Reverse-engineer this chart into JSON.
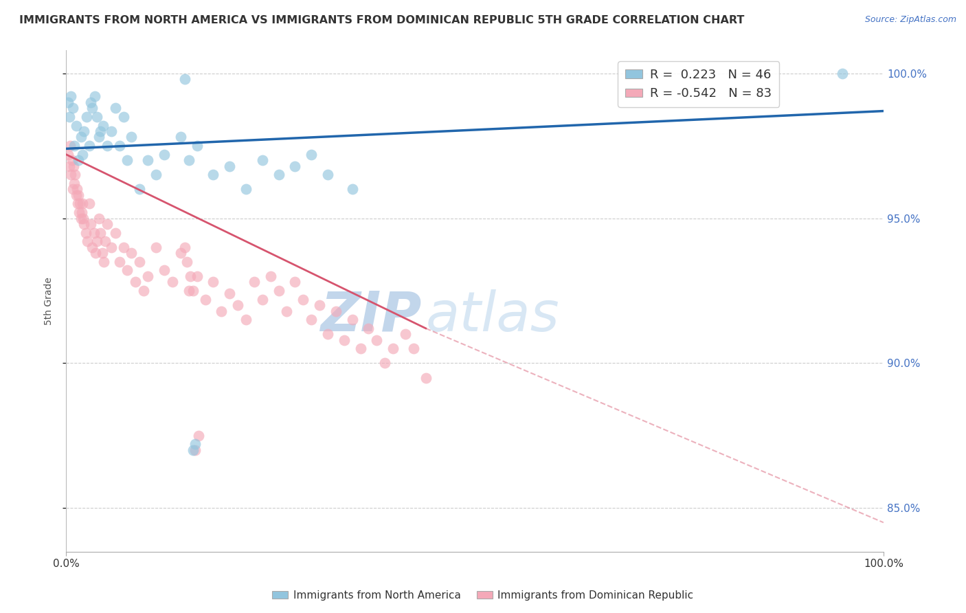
{
  "title": "IMMIGRANTS FROM NORTH AMERICA VS IMMIGRANTS FROM DOMINICAN REPUBLIC 5TH GRADE CORRELATION CHART",
  "source": "Source: ZipAtlas.com",
  "ylabel": "5th Grade",
  "xlim": [
    0.0,
    1.0
  ],
  "ylim": [
    0.835,
    1.008
  ],
  "yticks": [
    0.85,
    0.9,
    0.95,
    1.0
  ],
  "ytick_labels": [
    "85.0%",
    "90.0%",
    "95.0%",
    "100.0%"
  ],
  "blue_color": "#92c5de",
  "pink_color": "#f4a9b8",
  "blue_line_color": "#2166ac",
  "pink_line_color": "#d6546e",
  "watermark_zip": "ZIP",
  "watermark_atlas": "atlas",
  "legend_r_blue": "R =  0.223",
  "legend_n_blue": "N = 46",
  "legend_r_pink": "R = -0.542",
  "legend_n_pink": "N = 83",
  "blue_scatter_x": [
    0.002,
    0.004,
    0.006,
    0.008,
    0.01,
    0.012,
    0.015,
    0.018,
    0.02,
    0.022,
    0.025,
    0.028,
    0.03,
    0.032,
    0.035,
    0.038,
    0.04,
    0.042,
    0.045,
    0.05,
    0.055,
    0.06,
    0.065,
    0.07,
    0.075,
    0.08,
    0.09,
    0.1,
    0.11,
    0.12,
    0.14,
    0.15,
    0.16,
    0.18,
    0.2,
    0.22,
    0.24,
    0.26,
    0.28,
    0.3,
    0.32,
    0.35,
    0.155,
    0.158,
    0.95,
    0.145
  ],
  "blue_scatter_y": [
    0.99,
    0.985,
    0.992,
    0.988,
    0.975,
    0.982,
    0.97,
    0.978,
    0.972,
    0.98,
    0.985,
    0.975,
    0.99,
    0.988,
    0.992,
    0.985,
    0.978,
    0.98,
    0.982,
    0.975,
    0.98,
    0.988,
    0.975,
    0.985,
    0.97,
    0.978,
    0.96,
    0.97,
    0.965,
    0.972,
    0.978,
    0.97,
    0.975,
    0.965,
    0.968,
    0.96,
    0.97,
    0.965,
    0.968,
    0.972,
    0.965,
    0.96,
    0.87,
    0.872,
    1.0,
    0.998
  ],
  "pink_scatter_x": [
    0.002,
    0.004,
    0.006,
    0.008,
    0.01,
    0.012,
    0.014,
    0.016,
    0.018,
    0.02,
    0.022,
    0.024,
    0.026,
    0.028,
    0.03,
    0.032,
    0.034,
    0.036,
    0.038,
    0.04,
    0.042,
    0.044,
    0.046,
    0.048,
    0.05,
    0.055,
    0.06,
    0.065,
    0.07,
    0.075,
    0.08,
    0.085,
    0.09,
    0.095,
    0.1,
    0.11,
    0.12,
    0.13,
    0.14,
    0.15,
    0.16,
    0.17,
    0.18,
    0.19,
    0.2,
    0.21,
    0.22,
    0.23,
    0.24,
    0.25,
    0.26,
    0.27,
    0.28,
    0.29,
    0.3,
    0.31,
    0.32,
    0.33,
    0.34,
    0.35,
    0.36,
    0.37,
    0.38,
    0.39,
    0.4,
    0.415,
    0.425,
    0.44,
    0.005,
    0.007,
    0.009,
    0.011,
    0.013,
    0.015,
    0.017,
    0.019,
    0.021,
    0.145,
    0.148,
    0.152,
    0.155,
    0.158,
    0.162
  ],
  "pink_scatter_y": [
    0.972,
    0.968,
    0.965,
    0.96,
    0.962,
    0.958,
    0.955,
    0.952,
    0.95,
    0.955,
    0.948,
    0.945,
    0.942,
    0.955,
    0.948,
    0.94,
    0.945,
    0.938,
    0.942,
    0.95,
    0.945,
    0.938,
    0.935,
    0.942,
    0.948,
    0.94,
    0.945,
    0.935,
    0.94,
    0.932,
    0.938,
    0.928,
    0.935,
    0.925,
    0.93,
    0.94,
    0.932,
    0.928,
    0.938,
    0.925,
    0.93,
    0.922,
    0.928,
    0.918,
    0.924,
    0.92,
    0.915,
    0.928,
    0.922,
    0.93,
    0.925,
    0.918,
    0.928,
    0.922,
    0.915,
    0.92,
    0.91,
    0.918,
    0.908,
    0.915,
    0.905,
    0.912,
    0.908,
    0.9,
    0.905,
    0.91,
    0.905,
    0.895,
    0.975,
    0.97,
    0.968,
    0.965,
    0.96,
    0.958,
    0.955,
    0.952,
    0.95,
    0.94,
    0.935,
    0.93,
    0.925,
    0.87,
    0.875
  ],
  "blue_trendline": [
    0.0,
    1.0,
    0.974,
    0.987
  ],
  "pink_trendline_solid": [
    0.0,
    0.44,
    0.972,
    0.912
  ],
  "pink_trendline_dashed": [
    0.44,
    1.0,
    0.912,
    0.845
  ]
}
